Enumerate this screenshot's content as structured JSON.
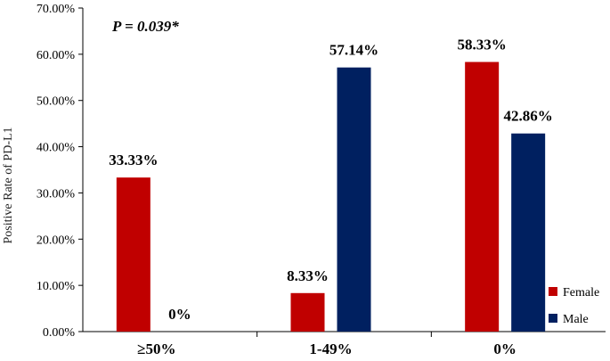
{
  "chart_data": {
    "type": "bar",
    "categories": [
      "≥50%",
      "1-49%",
      "0%"
    ],
    "series": [
      {
        "name": "Female",
        "color": "#c00000",
        "values": [
          33.33,
          8.33,
          58.33
        ],
        "labels": [
          "33.33%",
          "8.33%",
          "58.33%"
        ]
      },
      {
        "name": "Male",
        "color": "#002060",
        "values": [
          0,
          57.14,
          42.86
        ],
        "labels": [
          "0%",
          "57.14%",
          "42.86%"
        ]
      }
    ],
    "ylabel": "Positive Rate of PD-L1",
    "ylim": [
      0,
      70
    ],
    "yticks": [
      "0.00%",
      "10.00%",
      "20.00%",
      "30.00%",
      "40.00%",
      "50.00%",
      "60.00%",
      "70.00%"
    ],
    "annotation": "P = 0.039*",
    "grid": false,
    "legend_position": "bottom-right"
  }
}
